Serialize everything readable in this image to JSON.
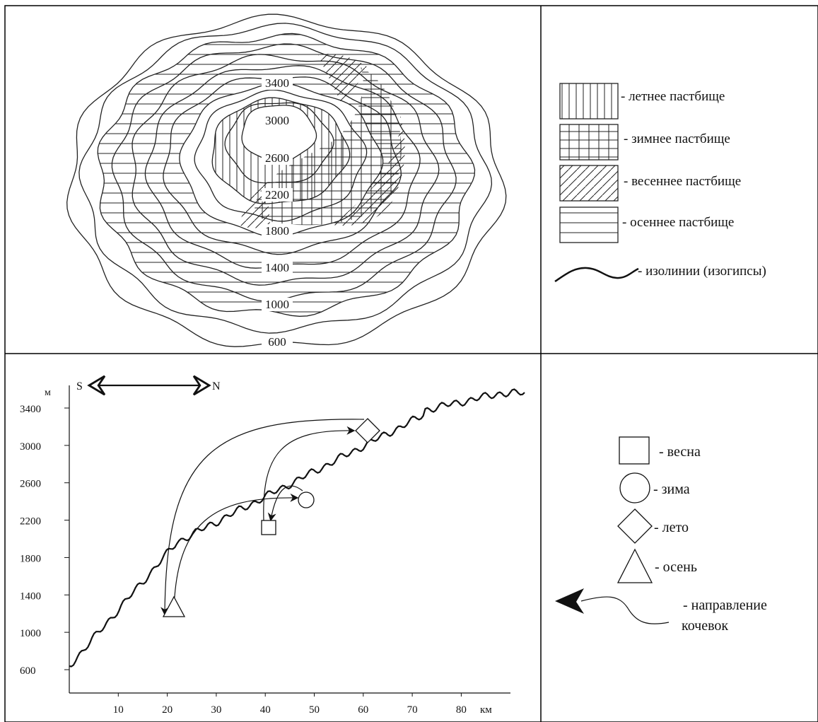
{
  "map": {
    "contour_labels": [
      "3400",
      "3000",
      "2600",
      "2200",
      "1800",
      "1400",
      "1000",
      "600"
    ]
  },
  "legend_map": {
    "items": [
      {
        "pattern": "vertical",
        "label": "- летнее пастбище"
      },
      {
        "pattern": "grid",
        "label": "- зимнее пастбище"
      },
      {
        "pattern": "diagonal",
        "label": "- весеннее пастбище"
      },
      {
        "pattern": "horizontal",
        "label": "- осеннее пастбище"
      },
      {
        "pattern": "wave",
        "label": "- изолинии (изогипсы)"
      }
    ]
  },
  "profile": {
    "y_unit": "м",
    "x_unit": "км",
    "direction_left": "S",
    "direction_right": "N",
    "y_ticks": [
      "3400",
      "3000",
      "2600",
      "2200",
      "1800",
      "1400",
      "1000",
      "600"
    ],
    "x_ticks": [
      "10",
      "20",
      "30",
      "40",
      "50",
      "60",
      "70",
      "80"
    ]
  },
  "legend_profile": {
    "items": [
      {
        "shape": "square",
        "label": "- весна"
      },
      {
        "shape": "circle",
        "label": "- зима"
      },
      {
        "shape": "diamond",
        "label": "- лето"
      },
      {
        "shape": "triangle",
        "label": "- осень"
      }
    ],
    "arrow_label_line1": "- направление",
    "arrow_label_line2": "кочевок"
  }
}
